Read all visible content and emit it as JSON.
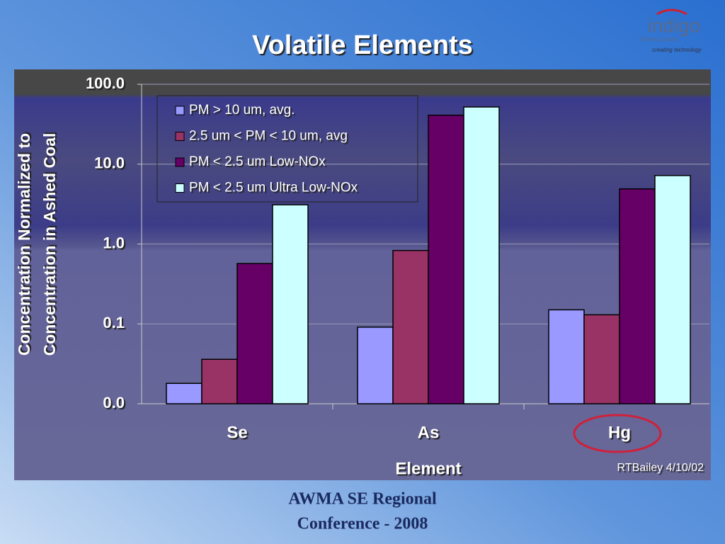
{
  "chart_data": {
    "type": "bar",
    "title": "Volatile Elements",
    "ylabel": [
      "Concentration Normalized to",
      "Concentration in Ashed Coal"
    ],
    "xlabel": "Element",
    "annotation": "RTBailey 4/10/02",
    "categories": [
      "Se",
      "As",
      "Hg"
    ],
    "series": [
      {
        "name": "PM > 10 um, avg.",
        "color": "#9999ff",
        "values": [
          0.018,
          0.091,
          0.15
        ]
      },
      {
        "name": "2.5 um < PM < 10 um, avg",
        "color": "#993366",
        "values": [
          0.036,
          0.83,
          0.13
        ]
      },
      {
        "name": "PM < 2.5 um Low-NOx",
        "color": "#660066",
        "values": [
          0.57,
          41,
          4.9
        ]
      },
      {
        "name": "PM < 2.5 um Ultra Low-NOx",
        "color": "#ccffff",
        "values": [
          3.1,
          52,
          7.2
        ]
      }
    ],
    "ylim": [
      0.01,
      100
    ],
    "yticks": [
      {
        "value": 0.01,
        "label": "0.0"
      },
      {
        "value": 0.1,
        "label": "0.1"
      },
      {
        "value": 1,
        "label": "1.0"
      },
      {
        "value": 10,
        "label": "10.0"
      },
      {
        "value": 100,
        "label": "100.0"
      }
    ],
    "log_scale": true,
    "grid": true,
    "legend": "top-left"
  },
  "logo": {
    "name": "indigo",
    "sub": "TECHNOLOGIES",
    "tagline": "creating technology"
  },
  "footer": [
    "AWMA SE Regional",
    "Conference - 2008"
  ]
}
